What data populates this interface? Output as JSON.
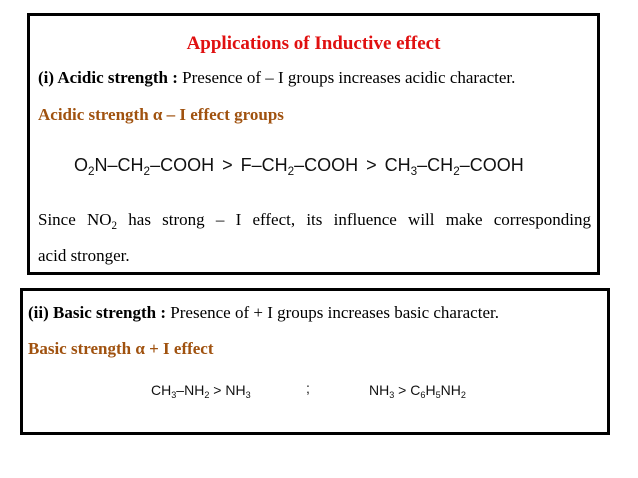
{
  "title": "Applications of Inductive effect",
  "acidic": {
    "label": "(i) Acidic strength :",
    "text": " Presence of – I groups increases acidic character.",
    "relation": "Acidic strength α – I effect groups",
    "formula": {
      "c1_a": "O",
      "c1_a_sub": "2",
      "c1_b": "N–CH",
      "c1_b_sub": "2",
      "c1_c": "–COOH",
      "gt1": ">",
      "c2_a": "F–CH",
      "c2_a_sub": "2",
      "c2_b": "–COOH",
      "gt2": ">",
      "c3_a": "CH",
      "c3_a_sub": "3",
      "c3_b": "–CH",
      "c3_b_sub": "2",
      "c3_c": "–COOH"
    },
    "since_1": "Since NO",
    "since_sub": "2",
    "since_2": " has strong – I effect, its influence will make corresponding",
    "since_3": "acid stronger."
  },
  "basic": {
    "label": "(ii) Basic strength :",
    "text": " Presence of + I groups increases basic character.",
    "relation": "Basic strength α + I effect",
    "formula": {
      "a1": "CH",
      "a1_sub": "3",
      "a2": "–NH",
      "a2_sub": "2",
      "a3": " > NH",
      "a3_sub": "3",
      "sep": ";",
      "b1": "NH",
      "b1_sub": "3",
      "b2": " > C",
      "b2_sub": "6",
      "b3": "H",
      "b3_sub": "5",
      "b4": "NH",
      "b4_sub": "2"
    }
  }
}
